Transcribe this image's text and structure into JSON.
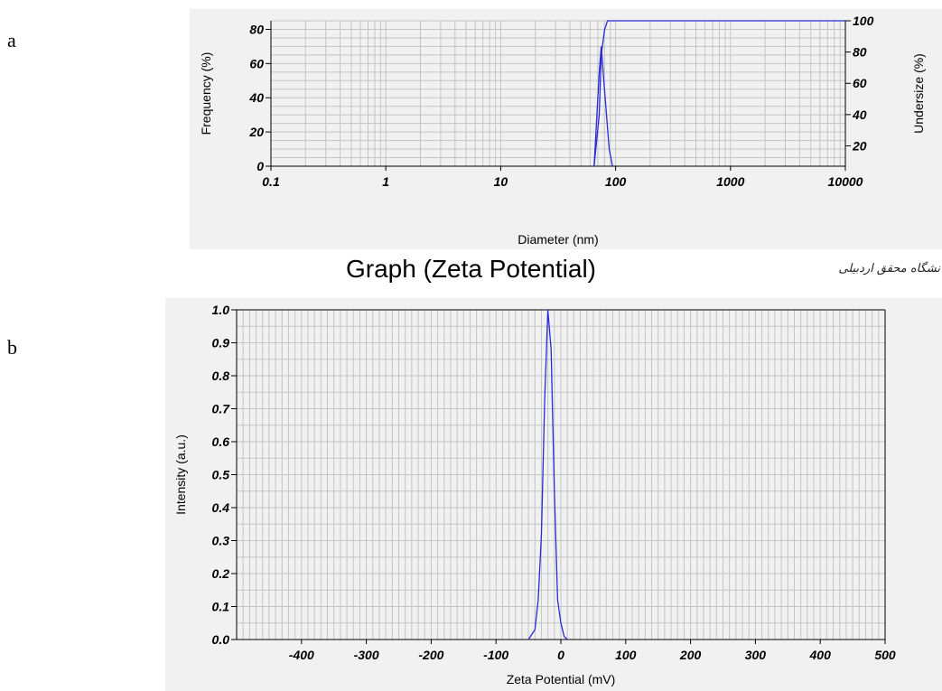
{
  "panel_labels": {
    "a": "a",
    "b": "b"
  },
  "main_title": "Graph (Zeta Potential)",
  "watermark": "نشگاه محقق اردبیلی",
  "colors": {
    "series": "#2a2ad8",
    "grid": "#c4c4c4",
    "panel_bg": "#f1f1f1"
  },
  "chart_data": [
    {
      "type": "line",
      "xlabel": "Diameter (nm)",
      "ylabel": "Frequency (%)",
      "y2label": "Undersize (%)",
      "x_scale": "log",
      "xlim": [
        0.1,
        10000
      ],
      "ylim": [
        0,
        85
      ],
      "y2lim": [
        7,
        100
      ],
      "x_ticks": [
        "0.1",
        "1",
        "10",
        "100",
        "1000",
        "10000"
      ],
      "y_ticks": [
        "0",
        "20",
        "40",
        "60",
        "80"
      ],
      "y2_ticks": [
        "20",
        "40",
        "60",
        "80",
        "100"
      ],
      "grid": true,
      "series": [
        {
          "axis": "left",
          "x": [
            65,
            72,
            75,
            80,
            88,
            94
          ],
          "y": [
            0,
            55,
            70,
            45,
            10,
            0
          ]
        },
        {
          "axis": "right",
          "x": [
            65,
            72,
            75,
            80,
            85,
            90,
            10000
          ],
          "y": [
            7,
            40,
            78,
            94,
            100,
            100,
            100
          ]
        }
      ]
    },
    {
      "type": "line",
      "xlabel": "Zeta Potential (mV)",
      "ylabel": "Intensity (a.u.)",
      "xlim": [
        -500,
        500
      ],
      "ylim": [
        0,
        1
      ],
      "x_ticks": [
        "-400",
        "-300",
        "-200",
        "-100",
        "0",
        "100",
        "200",
        "300",
        "400",
        "500"
      ],
      "y_ticks": [
        "0.0",
        "0.1",
        "0.2",
        "0.3",
        "0.4",
        "0.5",
        "0.6",
        "0.7",
        "0.8",
        "0.9",
        "1.0"
      ],
      "grid": true,
      "series": [
        {
          "x": [
            -50,
            -40,
            -35,
            -30,
            -25,
            -20,
            -15,
            -10,
            -5,
            0,
            5,
            10
          ],
          "y": [
            0,
            0.03,
            0.12,
            0.32,
            0.72,
            1.0,
            0.88,
            0.45,
            0.12,
            0.05,
            0.01,
            0
          ]
        }
      ]
    }
  ]
}
